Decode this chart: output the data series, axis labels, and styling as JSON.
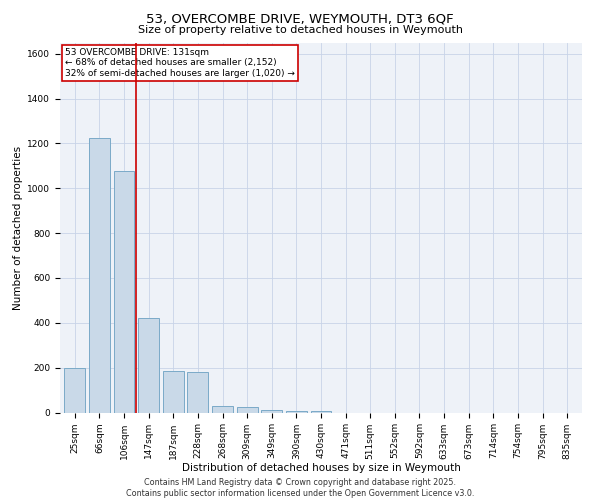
{
  "title_line1": "53, OVERCOMBE DRIVE, WEYMOUTH, DT3 6QF",
  "title_line2": "Size of property relative to detached houses in Weymouth",
  "xlabel": "Distribution of detached houses by size in Weymouth",
  "ylabel": "Number of detached properties",
  "categories": [
    "25sqm",
    "66sqm",
    "106sqm",
    "147sqm",
    "187sqm",
    "228sqm",
    "268sqm",
    "309sqm",
    "349sqm",
    "390sqm",
    "430sqm",
    "471sqm",
    "511sqm",
    "552sqm",
    "592sqm",
    "633sqm",
    "673sqm",
    "714sqm",
    "754sqm",
    "795sqm",
    "835sqm"
  ],
  "values": [
    200,
    1225,
    1075,
    420,
    185,
    180,
    30,
    25,
    10,
    5,
    5,
    0,
    0,
    0,
    0,
    0,
    0,
    0,
    0,
    0,
    0
  ],
  "bar_color": "#c9d9e8",
  "bar_edge_color": "#7aaac8",
  "vline_x": 2.5,
  "vline_color": "#cc0000",
  "annotation_text": "53 OVERCOMBE DRIVE: 131sqm\n← 68% of detached houses are smaller (2,152)\n32% of semi-detached houses are larger (1,020) →",
  "annotation_box_color": "#cc0000",
  "ylim": [
    0,
    1650
  ],
  "yticks": [
    0,
    200,
    400,
    600,
    800,
    1000,
    1200,
    1400,
    1600
  ],
  "grid_color": "#c8d4e8",
  "background_color": "#eef2f8",
  "footnote": "Contains HM Land Registry data © Crown copyright and database right 2025.\nContains public sector information licensed under the Open Government Licence v3.0.",
  "title_fontsize": 9.5,
  "subtitle_fontsize": 8.0,
  "ylabel_fontsize": 7.5,
  "xlabel_fontsize": 7.5,
  "tick_fontsize": 6.5,
  "annotation_fontsize": 6.5,
  "footnote_fontsize": 5.8
}
